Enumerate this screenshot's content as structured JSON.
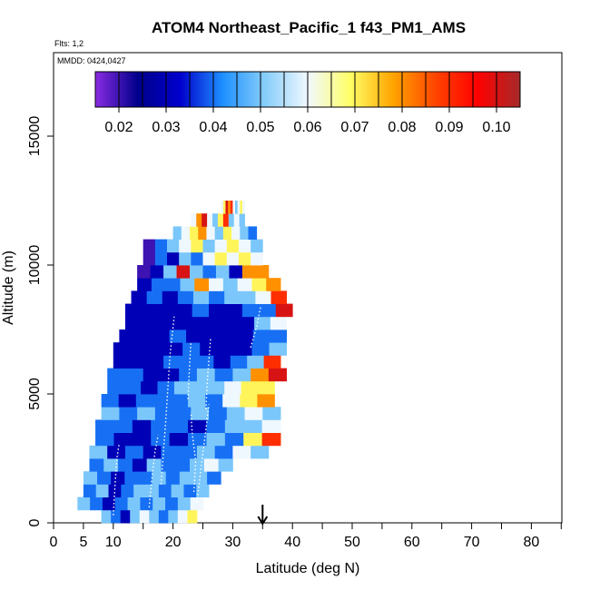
{
  "chart_data": {
    "type": "heatmap",
    "title": "ATOM4 Northeast_Pacific_1 f43_PM1_AMS",
    "annotations": {
      "flights": "Flts: 1,2",
      "dates": "MMDD: 0424,0427"
    },
    "xlabel": "Latitude (deg N)",
    "ylabel": "Altitude (m)",
    "xlim": [
      0,
      85
    ],
    "ylim": [
      0,
      17500
    ],
    "x_ticks": [
      0,
      5,
      10,
      20,
      30,
      40,
      50,
      60,
      70,
      80
    ],
    "x_tick_labels": [
      "0",
      "5",
      "10",
      "20",
      "30",
      "40",
      "50",
      "60",
      "70",
      "80"
    ],
    "y_ticks": [
      0,
      5000,
      10000,
      15000
    ],
    "y_tick_labels": [
      "0",
      "5000",
      "10000",
      "15000"
    ],
    "colorbar": {
      "min": 0.015,
      "max": 0.105,
      "ticks": [
        0.02,
        0.03,
        0.04,
        0.05,
        0.06,
        0.07,
        0.08,
        0.09,
        0.1
      ],
      "tick_labels": [
        "0.02",
        "0.03",
        "0.04",
        "0.05",
        "0.06",
        "0.07",
        "0.08",
        "0.09",
        "0.10"
      ],
      "colors": [
        "#8a2be2",
        "#00008b",
        "#0000cd",
        "#1e90ff",
        "#87cefa",
        "#f0f8ff",
        "#ffff66",
        "#ffa500",
        "#ff4500",
        "#ff0000",
        "#a52a2a"
      ]
    },
    "marker": {
      "latitude": 35,
      "symbol": "down-arrow"
    },
    "rows": [
      {
        "alt": 250,
        "lat": [
          8,
          24
        ],
        "values": [
          0.05,
          0.04,
          0.03,
          0.05,
          0.06,
          0.05,
          0.04,
          0.05,
          0.06,
          0.07
        ]
      },
      {
        "alt": 750,
        "lat": [
          4,
          25
        ],
        "values": [
          0.05,
          0.04,
          0.03,
          0.04,
          0.05,
          0.04,
          0.05,
          0.04,
          0.05,
          0.06
        ]
      },
      {
        "alt": 1250,
        "lat": [
          5,
          26
        ],
        "values": [
          0.04,
          0.05,
          0.03,
          0.04,
          0.05,
          0.05,
          0.04,
          0.05,
          0.04,
          0.05
        ]
      },
      {
        "alt": 1750,
        "lat": [
          5,
          28
        ],
        "values": [
          0.05,
          0.04,
          0.03,
          0.04,
          0.04,
          0.05,
          0.04,
          0.05,
          0.05,
          0.04
        ]
      },
      {
        "alt": 2250,
        "lat": [
          6,
          30
        ],
        "values": [
          0.04,
          0.05,
          0.04,
          0.03,
          0.05,
          0.04,
          0.04,
          0.05,
          0.06,
          0.05
        ]
      },
      {
        "alt": 2750,
        "lat": [
          6,
          36
        ],
        "values": [
          0.05,
          0.03,
          0.04,
          0.03,
          0.04,
          0.04,
          0.05,
          0.04,
          0.06,
          0.05
        ]
      },
      {
        "alt": 3250,
        "lat": [
          7,
          38
        ],
        "values": [
          0.04,
          0.03,
          0.03,
          0.04,
          0.03,
          0.04,
          0.05,
          0.04,
          0.07,
          0.09
        ]
      },
      {
        "alt": 3750,
        "lat": [
          7,
          38
        ],
        "values": [
          0.04,
          0.04,
          0.03,
          0.04,
          0.04,
          0.03,
          0.04,
          0.05,
          0.05,
          0.06
        ]
      },
      {
        "alt": 4250,
        "lat": [
          8,
          38
        ],
        "values": [
          0.05,
          0.04,
          0.05,
          0.04,
          0.04,
          0.05,
          0.04,
          0.05,
          0.06,
          0.05
        ]
      },
      {
        "alt": 4750,
        "lat": [
          8,
          37
        ],
        "values": [
          0.04,
          0.03,
          0.04,
          0.04,
          0.04,
          0.05,
          0.04,
          0.06,
          0.07,
          0.08
        ]
      },
      {
        "alt": 5250,
        "lat": [
          9,
          37
        ],
        "values": [
          0.04,
          0.04,
          0.03,
          0.04,
          0.05,
          0.05,
          0.05,
          0.06,
          0.07,
          0.07
        ]
      },
      {
        "alt": 5750,
        "lat": [
          9,
          39
        ],
        "values": [
          0.04,
          0.04,
          0.03,
          0.03,
          0.04,
          0.05,
          0.04,
          0.05,
          0.08,
          0.1
        ]
      },
      {
        "alt": 6250,
        "lat": [
          10,
          38
        ],
        "values": [
          0.03,
          0.03,
          0.03,
          0.04,
          0.04,
          0.04,
          0.03,
          0.04,
          0.05,
          0.09
        ]
      },
      {
        "alt": 6750,
        "lat": [
          10,
          39
        ],
        "values": [
          0.03,
          0.03,
          0.03,
          0.03,
          0.04,
          0.03,
          0.03,
          0.03,
          0.04,
          0.05
        ]
      },
      {
        "alt": 7250,
        "lat": [
          11,
          39
        ],
        "values": [
          0.03,
          0.03,
          0.03,
          0.04,
          0.03,
          0.03,
          0.03,
          0.03,
          0.04,
          0.04
        ]
      },
      {
        "alt": 7750,
        "lat": [
          12,
          39
        ],
        "values": [
          0.03,
          0.03,
          0.03,
          0.03,
          0.03,
          0.03,
          0.03,
          0.03,
          0.05,
          0.06
        ]
      },
      {
        "alt": 8250,
        "lat": [
          12,
          40
        ],
        "values": [
          0.03,
          0.03,
          0.03,
          0.03,
          0.04,
          0.03,
          0.03,
          0.04,
          0.04,
          0.1
        ]
      },
      {
        "alt": 8750,
        "lat": [
          13,
          39
        ],
        "values": [
          0.03,
          0.04,
          0.03,
          0.04,
          0.05,
          0.04,
          0.05,
          0.05,
          0.06,
          0.09
        ]
      },
      {
        "alt": 9250,
        "lat": [
          14,
          38
        ],
        "values": [
          0.03,
          0.04,
          0.04,
          0.05,
          0.08,
          0.06,
          0.05,
          0.06,
          0.07,
          0.08
        ]
      },
      {
        "alt": 9750,
        "lat": [
          14,
          36
        ],
        "values": [
          0.02,
          0.03,
          0.05,
          0.1,
          0.05,
          0.04,
          0.05,
          0.03,
          0.08,
          0.08
        ]
      },
      {
        "alt": 10250,
        "lat": [
          15,
          35
        ],
        "values": [
          0.02,
          0.04,
          0.03,
          0.05,
          0.04,
          0.06,
          0.07,
          0.06,
          0.07,
          0.06
        ]
      },
      {
        "alt": 10750,
        "lat": [
          15,
          35
        ],
        "values": [
          0.02,
          0.04,
          0.05,
          0.06,
          0.07,
          0.05,
          0.06,
          0.07,
          0.06,
          0.05
        ]
      },
      {
        "alt": 11250,
        "lat": [
          20,
          34
        ],
        "values": [
          0.05,
          0.06,
          0.07,
          0.08,
          0.06,
          0.05,
          0.07,
          0.06,
          0.05,
          0.04
        ]
      },
      {
        "alt": 11750,
        "lat": [
          23,
          32
        ],
        "values": [
          0.06,
          0.08,
          0.1,
          0.06,
          0.05,
          0.07,
          0.09,
          0.05,
          0.06,
          0.05
        ]
      },
      {
        "alt": 12250,
        "lat": [
          28,
          32
        ],
        "values": [
          0.06,
          0.07,
          0.1,
          0.08,
          0.09,
          0.06,
          0.05,
          0.06,
          0.07,
          0.06
        ]
      }
    ],
    "flight_tracks": [
      [
        [
          10.0,
          300
        ],
        [
          10.3,
          1500
        ],
        [
          10.6,
          2500
        ],
        [
          11.0,
          3100
        ]
      ],
      [
        [
          16.0,
          600
        ],
        [
          16.5,
          1800
        ],
        [
          17.0,
          2800
        ],
        [
          17.5,
          3400
        ]
      ],
      [
        [
          18.0,
          1500
        ],
        [
          18.8,
          4000
        ],
        [
          19.5,
          6500
        ],
        [
          20.2,
          8000
        ]
      ],
      [
        [
          23.5,
          1200
        ],
        [
          23.8,
          2400
        ],
        [
          23.2,
          3500
        ],
        [
          23.0,
          4300
        ]
      ],
      [
        [
          24.0,
          800
        ],
        [
          25.0,
          2700
        ],
        [
          25.5,
          3600
        ],
        [
          26.0,
          4600
        ]
      ],
      [
        [
          22.5,
          4800
        ],
        [
          22.7,
          5800
        ],
        [
          23.0,
          7000
        ]
      ],
      [
        [
          25.5,
          4400
        ],
        [
          25.8,
          5700
        ],
        [
          26.3,
          7200
        ]
      ],
      [
        [
          33.0,
          6800
        ],
        [
          34.0,
          7600
        ],
        [
          34.7,
          8400
        ]
      ]
    ]
  }
}
